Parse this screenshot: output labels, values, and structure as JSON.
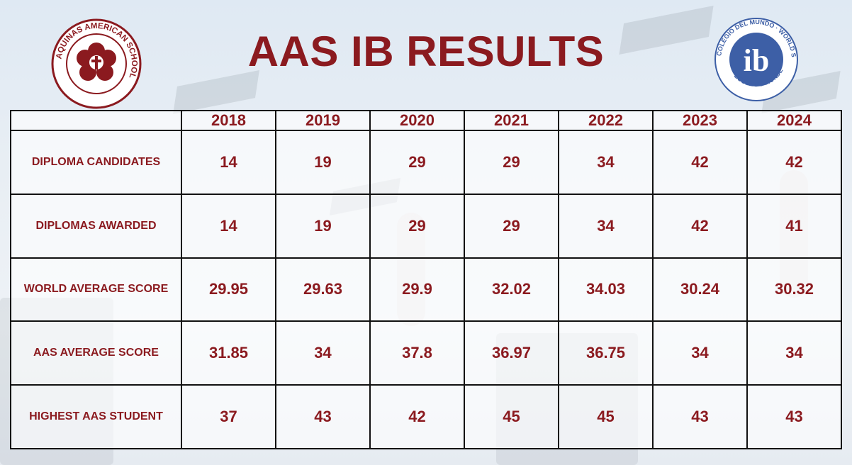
{
  "page": {
    "title": "AAS IB RESULTS"
  },
  "logos": {
    "left_text": "AQUINAS AMERICAN SCHOOL",
    "right_text_top": "COLEGIO DEL MUNDO · WORLD SCHOOL",
    "right_text_bottom": "ÉCOLE DU MONDE",
    "right_mark": "ib"
  },
  "colors": {
    "accent": "#8b1a1f",
    "ib_blue": "#3d5fa6"
  },
  "table": {
    "years": [
      "2018",
      "2019",
      "2020",
      "2021",
      "2022",
      "2023",
      "2024"
    ],
    "rows": [
      {
        "label": "DIPLOMA CANDIDATES",
        "values": [
          "14",
          "19",
          "29",
          "29",
          "34",
          "42",
          "42"
        ]
      },
      {
        "label": "DIPLOMAS AWARDED",
        "values": [
          "14",
          "19",
          "29",
          "29",
          "34",
          "42",
          "41"
        ]
      },
      {
        "label": "WORLD AVERAGE SCORE",
        "values": [
          "29.95",
          "29.63",
          "29.9",
          "32.02",
          "34.03",
          "30.24",
          "30.32"
        ]
      },
      {
        "label": "AAS AVERAGE SCORE",
        "values": [
          "31.85",
          "34",
          "37.8",
          "36.97",
          "36.75",
          "34",
          "34"
        ]
      },
      {
        "label": "HIGHEST AAS STUDENT",
        "values": [
          "37",
          "43",
          "42",
          "45",
          "45",
          "43",
          "43"
        ]
      }
    ]
  }
}
